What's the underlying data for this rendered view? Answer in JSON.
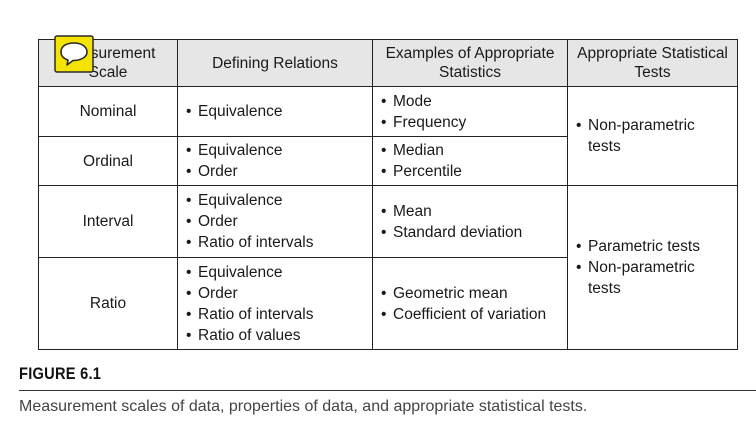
{
  "table": {
    "headers": [
      "Measurement Scale",
      "Defining Relations",
      "Examples of Appropriate Statistics",
      "Appropriate Statistical Tests"
    ],
    "rows": [
      {
        "scale": "Nominal",
        "relations": [
          "Equivalence"
        ],
        "statistics": [
          "Mode",
          "Frequency"
        ]
      },
      {
        "scale": "Ordinal",
        "relations": [
          "Equivalence",
          "Order"
        ],
        "statistics": [
          "Median",
          "Percentile"
        ]
      },
      {
        "scale": "Interval",
        "relations": [
          "Equivalence",
          "Order",
          "Ratio of intervals"
        ],
        "statistics": [
          "Mean",
          "Standard deviation"
        ]
      },
      {
        "scale": "Ratio",
        "relations": [
          "Equivalence",
          "Order",
          "Ratio of intervals",
          "Ratio of values"
        ],
        "statistics": [
          "Geometric mean",
          "Coefficient of variation"
        ]
      }
    ],
    "tests": [
      [
        "Non-parametric tests"
      ],
      [
        "Parametric tests",
        "Non-parametric tests"
      ]
    ]
  },
  "figure": {
    "label": "FIGURE 6.1",
    "caption": "Measurement scales of data, properties of data, and appropriate statistical tests."
  },
  "icons": {
    "note": "comment-note-icon",
    "note_color": "#f5e400"
  }
}
